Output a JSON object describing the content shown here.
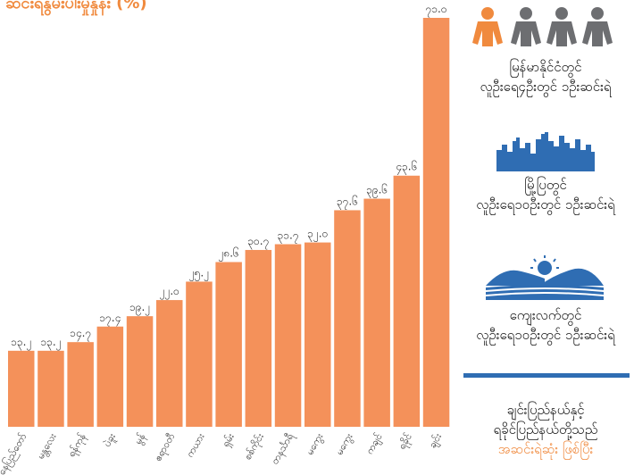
{
  "title": "ဆင်းရဲနွမ်းပါးမှုနှုန်း (%)",
  "chart_data": {
    "type": "bar",
    "categories": [
      "နေပြည်တော်",
      "မန္တလေး",
      "ရန်ကုန်",
      "ပဲခူး",
      "မွန်",
      "ဧရာဝတီ",
      "ကယား",
      "ရှမ်း",
      "စစ်ကိုင်း",
      "တနင်္သာရီ",
      "မကွေး",
      "မကွေး",
      "ကချင်",
      "ရခိုင်",
      "ချင်း"
    ],
    "values": [
      13.2,
      13.2,
      14.7,
      17.4,
      19.2,
      22.0,
      25.2,
      28.6,
      30.7,
      31.7,
      32.0,
      37.6,
      39.6,
      43.6,
      71.0
    ],
    "value_labels": [
      "၁၃.၂",
      "၁၃.၂",
      "၁၄.၇",
      "၁၇.၄",
      "၁၉.၂",
      "၂၂.၀",
      "၂၅.၂",
      "၂၈.၆",
      "၃၀.၇",
      "၃၁.၇",
      "၃၂.၀",
      "၃၇.၆",
      "၃၉.၆",
      "၄၃.၆",
      "၇၁.၀"
    ],
    "bar_color": "#f4915a",
    "ylim": [
      0,
      71
    ],
    "grid": false,
    "title": "ဆင်းရဲနွမ်းပါးမှုနှုန်း (%)"
  },
  "side_panel": {
    "national_text": [
      "မြန်မာနိုင်ငံတွင်",
      "လူဦးရေ၄ဦးတွင် ၁ဦးဆင်းရဲ"
    ],
    "urban_text": [
      "မြို့ပြတွင်",
      "လူဦးရေ၁၀ဦးတွင် ၁ဦးဆင်းရဲ"
    ],
    "rural_text": [
      "ကျေးလက်တွင်",
      "လူဦးရေ၁၀ဦးတွင် ၁ဦးဆင်းရဲ"
    ],
    "conclusion_text": [
      "ချင်းပြည်နယ်နှင့်",
      "ရခိုင်ပြည်နယ်တို့သည်",
      "အဆင်းရဲဆုံး ဖြစ်ပြီး"
    ],
    "conclusion_highlight": "အဆင်းရဲဆုံး",
    "colors": {
      "accent_orange": "#f08a3e",
      "person_gray": "#6d6e71",
      "city_blue": "#2f6db3",
      "divider_blue": "#2f6db3"
    },
    "icons": [
      "person-orange-icon",
      "person-gray-icon",
      "city-skyline-icon",
      "rural-landscape-icon"
    ]
  }
}
